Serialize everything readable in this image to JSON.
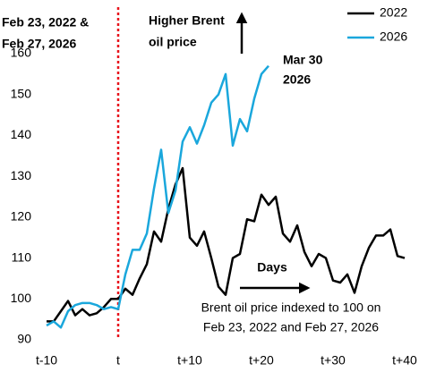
{
  "chart_data": {
    "type": "line",
    "x": [
      -10,
      -9,
      -8,
      -7,
      -6,
      -5,
      -4,
      -3,
      -2,
      -1,
      0,
      1,
      2,
      3,
      4,
      5,
      6,
      7,
      8,
      9,
      10,
      11,
      12,
      13,
      14,
      15,
      16,
      17,
      18,
      19,
      20,
      21,
      22,
      23,
      24,
      25,
      26,
      27,
      28,
      29,
      30,
      31,
      32,
      33,
      34,
      35,
      36,
      37,
      38,
      39,
      40
    ],
    "series": [
      {
        "name": "2022",
        "color": "#000000",
        "values": [
          94.5,
          94.5,
          97,
          99.5,
          96,
          97.5,
          96,
          96.5,
          98,
          100,
          100,
          102.5,
          101,
          105,
          108.5,
          116.5,
          114,
          122,
          128,
          132,
          115,
          113,
          116.5,
          110,
          103,
          101,
          110,
          111,
          119.5,
          119,
          125.5,
          123,
          125,
          116,
          114,
          118,
          111.5,
          108,
          111,
          110,
          104.5,
          104,
          106,
          101.5,
          108,
          112.5,
          115.5,
          115.5,
          117,
          110.5,
          110
        ]
      },
      {
        "name": "2026",
        "color": "#1aa7dc",
        "values": [
          93.5,
          94.5,
          93,
          97,
          98.5,
          99,
          99,
          98.5,
          97.5,
          98,
          97.5,
          106,
          112,
          112,
          116,
          127,
          136.5,
          121,
          126.5,
          138.5,
          142,
          138,
          142.5,
          148,
          150,
          155,
          137.5,
          144,
          141,
          149,
          155,
          157,
          null,
          null,
          null,
          null,
          null,
          null,
          null,
          null,
          null,
          null,
          null,
          null,
          null,
          null,
          null,
          null,
          null,
          null,
          null
        ]
      }
    ],
    "xlim": [
      -11.5,
      41
    ],
    "xticks": [
      {
        "value": -10,
        "label": "t-10"
      },
      {
        "value": 0,
        "label": "t"
      },
      {
        "value": 10,
        "label": "t+10"
      },
      {
        "value": 20,
        "label": "t+20"
      },
      {
        "value": 30,
        "label": "t+30"
      },
      {
        "value": 40,
        "label": "t+40"
      }
    ],
    "ylim": [
      90,
      167
    ],
    "yticks": [
      90,
      100,
      110,
      120,
      130,
      140,
      150,
      160
    ],
    "reference_line": {
      "x": 0,
      "color": "#e8141c",
      "label": [
        "Feb 23, 2022 &",
        "Feb 27, 2026"
      ]
    },
    "annotations": [
      {
        "lines": [
          "Higher Brent",
          "oil price"
        ]
      },
      {
        "lines": [
          "Mar 30",
          "2026"
        ]
      },
      {
        "lines": [
          "Days"
        ]
      },
      {
        "lines": [
          "Brent oil price indexed to 100 on",
          "Feb 23, 2022 and Feb 27, 2026"
        ]
      }
    ],
    "legend": "upper right"
  }
}
